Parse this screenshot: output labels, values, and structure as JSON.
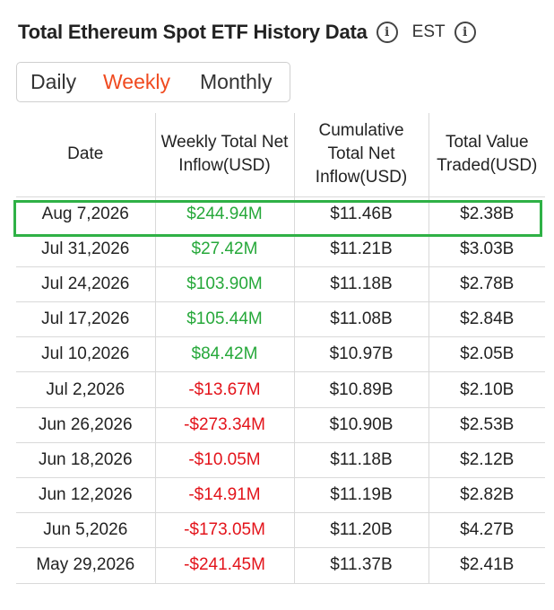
{
  "header": {
    "title": "Total Ethereum Spot ETF History Data",
    "timezone": "EST",
    "info_icon": "info-icon"
  },
  "tabs": [
    {
      "label": "Daily",
      "active": false
    },
    {
      "label": "Weekly",
      "active": true
    },
    {
      "label": "Monthly",
      "active": false
    }
  ],
  "colors": {
    "active_tab": "#f04a1f",
    "positive": "#26a83a",
    "negative": "#e3141b",
    "highlight_border": "#2fb146"
  },
  "table": {
    "columns": [
      "Date",
      "Weekly Total Net Inflow(USD)",
      "Cumulative Total Net Inflow(USD)",
      "Total Value Traded(USD)"
    ],
    "rows": [
      {
        "date": "Aug 7,2026",
        "inflow": "$244.94M",
        "sign": "pos",
        "cumulative": "$11.46B",
        "traded": "$2.38B",
        "highlighted": true
      },
      {
        "date": "Jul 31,2026",
        "inflow": "$27.42M",
        "sign": "pos",
        "cumulative": "$11.21B",
        "traded": "$3.03B"
      },
      {
        "date": "Jul 24,2026",
        "inflow": "$103.90M",
        "sign": "pos",
        "cumulative": "$11.18B",
        "traded": "$2.78B"
      },
      {
        "date": "Jul 17,2026",
        "inflow": "$105.44M",
        "sign": "pos",
        "cumulative": "$11.08B",
        "traded": "$2.84B"
      },
      {
        "date": "Jul 10,2026",
        "inflow": "$84.42M",
        "sign": "pos",
        "cumulative": "$10.97B",
        "traded": "$2.05B"
      },
      {
        "date": "Jul 2,2026",
        "inflow": "-$13.67M",
        "sign": "neg",
        "cumulative": "$10.89B",
        "traded": "$2.10B"
      },
      {
        "date": "Jun 26,2026",
        "inflow": "-$273.34M",
        "sign": "neg",
        "cumulative": "$10.90B",
        "traded": "$2.53B"
      },
      {
        "date": "Jun 18,2026",
        "inflow": "-$10.05M",
        "sign": "neg",
        "cumulative": "$11.18B",
        "traded": "$2.12B"
      },
      {
        "date": "Jun 12,2026",
        "inflow": "-$14.91M",
        "sign": "neg",
        "cumulative": "$11.19B",
        "traded": "$2.82B"
      },
      {
        "date": "Jun 5,2026",
        "inflow": "-$173.05M",
        "sign": "neg",
        "cumulative": "$11.20B",
        "traded": "$4.27B"
      },
      {
        "date": "May 29,2026",
        "inflow": "-$241.45M",
        "sign": "neg",
        "cumulative": "$11.37B",
        "traded": "$2.41B"
      }
    ]
  }
}
